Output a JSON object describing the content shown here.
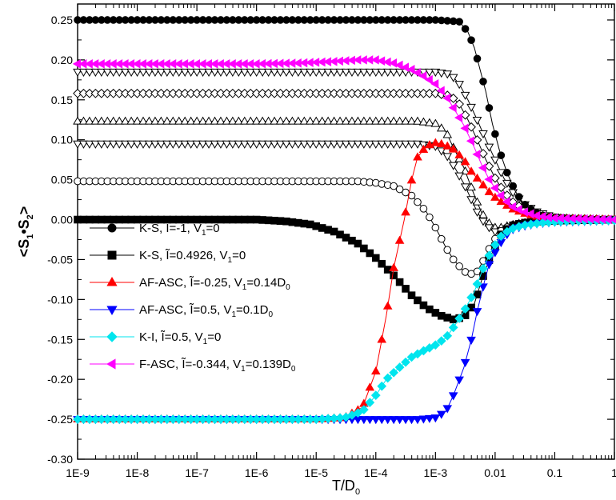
{
  "chart_data": {
    "type": "line",
    "x_scale": "log",
    "xlim": [
      1e-09,
      1
    ],
    "ylim": [
      -0.3,
      0.27
    ],
    "x_ticks": [
      "1E-9",
      "1E-8",
      "1E-7",
      "1E-6",
      "1E-5",
      "1E-4",
      "1E-3",
      "0.01",
      "0.1",
      "1"
    ],
    "y_ticks": [
      "0.25",
      "0.20",
      "0.15",
      "0.10",
      "0.05",
      "0.00",
      "-0.05",
      "-0.10",
      "-0.15",
      "-0.20",
      "-0.25",
      "-0.30"
    ],
    "xlabel": {
      "main": "T/D",
      "sub": "0"
    },
    "ylabel": "<S1•S2>",
    "legend_position": "lower-left",
    "series": [
      {
        "name": "K-S, Ĩ=-1, V1=0",
        "legend": [
          {
            "t": "K-S, Ĩ=-1, V"
          },
          {
            "t": "1",
            "sub": true
          },
          {
            "t": "=0"
          }
        ],
        "color": "#000000",
        "marker": "circle",
        "fill": true,
        "in_legend": true,
        "points": [
          [
            1e-09,
            0.25
          ],
          [
            1e-05,
            0.25
          ],
          [
            0.001,
            0.25
          ],
          [
            0.0025,
            0.248
          ],
          [
            0.0035,
            0.235
          ],
          [
            0.0045,
            0.215
          ],
          [
            0.0055,
            0.19
          ],
          [
            0.007,
            0.16
          ],
          [
            0.009,
            0.12
          ],
          [
            0.012,
            0.085
          ],
          [
            0.016,
            0.058
          ],
          [
            0.022,
            0.035
          ],
          [
            0.03,
            0.02
          ],
          [
            0.045,
            0.01
          ],
          [
            0.07,
            0.004
          ],
          [
            0.12,
            0.001
          ],
          [
            0.3,
            0.0
          ],
          [
            1,
            0.0
          ]
        ]
      },
      {
        "name": "K-S, Ĩ=0.4926, V1=0",
        "legend": [
          {
            "t": "K-S, Ĩ=0.4926, V"
          },
          {
            "t": "1",
            "sub": true
          },
          {
            "t": "=0"
          }
        ],
        "color": "#000000",
        "marker": "square",
        "fill": true,
        "in_legend": true,
        "points": [
          [
            1e-09,
            0.0
          ],
          [
            1e-06,
            0.0
          ],
          [
            3e-06,
            -0.002
          ],
          [
            8e-06,
            -0.006
          ],
          [
            2e-05,
            -0.015
          ],
          [
            5e-05,
            -0.03
          ],
          [
            0.0001,
            -0.048
          ],
          [
            0.0002,
            -0.07
          ],
          [
            0.0004,
            -0.095
          ],
          [
            0.0007,
            -0.11
          ],
          [
            0.0012,
            -0.12
          ],
          [
            0.002,
            -0.125
          ],
          [
            0.003,
            -0.122
          ],
          [
            0.0045,
            -0.105
          ],
          [
            0.006,
            -0.075
          ],
          [
            0.0085,
            -0.045
          ],
          [
            0.012,
            -0.02
          ],
          [
            0.018,
            -0.008
          ],
          [
            0.03,
            -0.004
          ],
          [
            0.06,
            -0.002
          ],
          [
            0.15,
            -0.001
          ],
          [
            1,
            0.0
          ]
        ]
      },
      {
        "name": "AF-ASC, Ĩ=-0.25, V1=0.14D0",
        "legend": [
          {
            "t": "AF-ASC, Ĩ=-0.25, V"
          },
          {
            "t": "1",
            "sub": true
          },
          {
            "t": "=0.14D"
          },
          {
            "t": "0",
            "sub": true
          }
        ],
        "color": "#ff0000",
        "marker": "triangle-up",
        "fill": true,
        "in_legend": true,
        "points": [
          [
            1e-09,
            -0.25
          ],
          [
            1e-05,
            -0.25
          ],
          [
            3e-05,
            -0.248
          ],
          [
            6e-05,
            -0.235
          ],
          [
            0.0001,
            -0.19
          ],
          [
            0.00015,
            -0.12
          ],
          [
            0.0002,
            -0.06
          ],
          [
            0.0003,
            0.0
          ],
          [
            0.0004,
            0.05
          ],
          [
            0.0005,
            0.078
          ],
          [
            0.0007,
            0.092
          ],
          [
            0.001,
            0.096
          ],
          [
            0.0014,
            0.094
          ],
          [
            0.002,
            0.088
          ],
          [
            0.003,
            0.075
          ],
          [
            0.004,
            0.06
          ],
          [
            0.006,
            0.045
          ],
          [
            0.009,
            0.03
          ],
          [
            0.014,
            0.02
          ],
          [
            0.02,
            0.013
          ],
          [
            0.03,
            0.008
          ],
          [
            0.05,
            0.004
          ],
          [
            0.1,
            0.001
          ],
          [
            1,
            0.0
          ]
        ]
      },
      {
        "name": "AF-ASC, Ĩ=0.5, V1=0.1D0",
        "legend": [
          {
            "t": "AF-ASC, Ĩ=0.5, V"
          },
          {
            "t": "1",
            "sub": true
          },
          {
            "t": "=0.1D"
          },
          {
            "t": "0",
            "sub": true
          }
        ],
        "color": "#0000ff",
        "marker": "triangle-down",
        "fill": true,
        "in_legend": true,
        "points": [
          [
            1e-09,
            -0.25
          ],
          [
            0.0001,
            -0.25
          ],
          [
            0.0005,
            -0.25
          ],
          [
            0.001,
            -0.248
          ],
          [
            0.0015,
            -0.24
          ],
          [
            0.002,
            -0.22
          ],
          [
            0.003,
            -0.185
          ],
          [
            0.004,
            -0.15
          ],
          [
            0.005,
            -0.115
          ],
          [
            0.0065,
            -0.08
          ],
          [
            0.008,
            -0.055
          ],
          [
            0.011,
            -0.035
          ],
          [
            0.015,
            -0.02
          ],
          [
            0.02,
            -0.012
          ],
          [
            0.03,
            -0.008
          ],
          [
            0.05,
            -0.005
          ],
          [
            0.1,
            -0.003
          ],
          [
            1,
            -0.001
          ]
        ]
      },
      {
        "name": "K-I, Ĩ=0.5, V1=0",
        "legend": [
          {
            "t": "K-I, Ĩ=0.5, V"
          },
          {
            "t": "1",
            "sub": true
          },
          {
            "t": "=0"
          }
        ],
        "color": "#00e5ee",
        "marker": "diamond",
        "fill": true,
        "in_legend": true,
        "points": [
          [
            1e-09,
            -0.25
          ],
          [
            1e-05,
            -0.25
          ],
          [
            3e-05,
            -0.248
          ],
          [
            6e-05,
            -0.24
          ],
          [
            0.0001,
            -0.22
          ],
          [
            0.00015,
            -0.2
          ],
          [
            0.00025,
            -0.185
          ],
          [
            0.0004,
            -0.172
          ],
          [
            0.0006,
            -0.165
          ],
          [
            0.001,
            -0.157
          ],
          [
            0.0015,
            -0.148
          ],
          [
            0.002,
            -0.135
          ],
          [
            0.003,
            -0.115
          ],
          [
            0.0045,
            -0.09
          ],
          [
            0.006,
            -0.065
          ],
          [
            0.0085,
            -0.04
          ],
          [
            0.012,
            -0.022
          ],
          [
            0.018,
            -0.012
          ],
          [
            0.03,
            -0.007
          ],
          [
            0.06,
            -0.004
          ],
          [
            0.15,
            -0.002
          ],
          [
            1,
            -0.001
          ]
        ]
      },
      {
        "name": "F-ASC, Ĩ=-0.344, V1=0.139D0",
        "legend": [
          {
            "t": "F-ASC, Ĩ=-0.344, V"
          },
          {
            "t": "1",
            "sub": true
          },
          {
            "t": "=0.139D"
          },
          {
            "t": "0",
            "sub": true
          }
        ],
        "color": "#ff00ff",
        "marker": "triangle-left",
        "fill": true,
        "in_legend": true,
        "points": [
          [
            1e-09,
            0.195
          ],
          [
            1e-07,
            0.195
          ],
          [
            1e-06,
            0.195
          ],
          [
            5e-06,
            0.196
          ],
          [
            2e-05,
            0.198
          ],
          [
            5e-05,
            0.2
          ],
          [
            0.0001,
            0.2
          ],
          [
            0.0002,
            0.196
          ],
          [
            0.0004,
            0.188
          ],
          [
            0.0007,
            0.178
          ],
          [
            0.001,
            0.17
          ],
          [
            0.0015,
            0.155
          ],
          [
            0.002,
            0.14
          ],
          [
            0.003,
            0.118
          ],
          [
            0.0045,
            0.09
          ],
          [
            0.006,
            0.068
          ],
          [
            0.008,
            0.05
          ],
          [
            0.011,
            0.035
          ],
          [
            0.015,
            0.024
          ],
          [
            0.02,
            0.016
          ],
          [
            0.03,
            0.01
          ],
          [
            0.05,
            0.005
          ],
          [
            0.1,
            0.002
          ],
          [
            1,
            0.0
          ]
        ]
      },
      {
        "name": "open triangle-down",
        "color": "#000000",
        "marker": "triangle-down",
        "fill": false,
        "in_legend": false,
        "points": [
          [
            1e-09,
            0.185
          ],
          [
            1e-05,
            0.185
          ],
          [
            0.001,
            0.185
          ],
          [
            0.0018,
            0.182
          ],
          [
            0.0025,
            0.17
          ],
          [
            0.0035,
            0.15
          ],
          [
            0.005,
            0.125
          ],
          [
            0.007,
            0.1
          ],
          [
            0.01,
            0.075
          ],
          [
            0.014,
            0.052
          ],
          [
            0.02,
            0.034
          ],
          [
            0.03,
            0.02
          ],
          [
            0.05,
            0.01
          ],
          [
            0.09,
            0.004
          ],
          [
            0.2,
            0.001
          ],
          [
            1,
            0.0
          ]
        ]
      },
      {
        "name": "open diamond",
        "color": "#000000",
        "marker": "diamond",
        "fill": false,
        "in_legend": false,
        "points": [
          [
            1e-09,
            0.158
          ],
          [
            1e-05,
            0.158
          ],
          [
            0.001,
            0.158
          ],
          [
            0.0018,
            0.155
          ],
          [
            0.0025,
            0.145
          ],
          [
            0.0035,
            0.125
          ],
          [
            0.005,
            0.1
          ],
          [
            0.007,
            0.075
          ],
          [
            0.01,
            0.052
          ],
          [
            0.014,
            0.035
          ],
          [
            0.02,
            0.022
          ],
          [
            0.03,
            0.013
          ],
          [
            0.05,
            0.006
          ],
          [
            0.1,
            0.002
          ],
          [
            1,
            0.0
          ]
        ]
      },
      {
        "name": "open triangle-up",
        "color": "#000000",
        "marker": "triangle-up",
        "fill": false,
        "in_legend": false,
        "points": [
          [
            1e-09,
            0.123
          ],
          [
            1e-05,
            0.123
          ],
          [
            0.0005,
            0.123
          ],
          [
            0.001,
            0.12
          ],
          [
            0.0015,
            0.11
          ],
          [
            0.002,
            0.09
          ],
          [
            0.003,
            0.065
          ],
          [
            0.004,
            0.04
          ],
          [
            0.005,
            0.022
          ],
          [
            0.006,
            0.008
          ],
          [
            0.008,
            -0.005
          ],
          [
            0.01,
            -0.01
          ],
          [
            0.013,
            -0.01
          ],
          [
            0.018,
            -0.007
          ],
          [
            0.03,
            -0.004
          ],
          [
            0.06,
            -0.002
          ],
          [
            0.2,
            -0.001
          ],
          [
            1,
            0.0
          ]
        ]
      },
      {
        "name": "open triangle-down lower",
        "color": "#000000",
        "marker": "triangle-down",
        "fill": false,
        "in_legend": false,
        "points": [
          [
            1e-09,
            0.095
          ],
          [
            1e-05,
            0.095
          ],
          [
            0.0005,
            0.095
          ],
          [
            0.001,
            0.092
          ],
          [
            0.0015,
            0.082
          ],
          [
            0.002,
            0.068
          ],
          [
            0.003,
            0.045
          ],
          [
            0.004,
            0.025
          ],
          [
            0.005,
            0.01
          ],
          [
            0.006,
            0.0
          ],
          [
            0.008,
            -0.01
          ],
          [
            0.01,
            -0.015
          ],
          [
            0.013,
            -0.014
          ],
          [
            0.018,
            -0.01
          ],
          [
            0.03,
            -0.006
          ],
          [
            0.06,
            -0.003
          ],
          [
            0.2,
            -0.001
          ],
          [
            1,
            0.0
          ]
        ]
      },
      {
        "name": "open circle",
        "color": "#000000",
        "marker": "circle",
        "fill": false,
        "in_legend": false,
        "points": [
          [
            1e-09,
            0.048
          ],
          [
            1e-05,
            0.048
          ],
          [
            5e-05,
            0.048
          ],
          [
            0.0001,
            0.046
          ],
          [
            0.0002,
            0.042
          ],
          [
            0.0004,
            0.03
          ],
          [
            0.0007,
            0.01
          ],
          [
            0.001,
            -0.01
          ],
          [
            0.0015,
            -0.035
          ],
          [
            0.002,
            -0.05
          ],
          [
            0.003,
            -0.065
          ],
          [
            0.004,
            -0.068
          ],
          [
            0.005,
            -0.065
          ],
          [
            0.0065,
            -0.05
          ],
          [
            0.0085,
            -0.032
          ],
          [
            0.012,
            -0.015
          ],
          [
            0.018,
            -0.007
          ],
          [
            0.03,
            -0.004
          ],
          [
            0.06,
            -0.002
          ],
          [
            0.15,
            -0.001
          ],
          [
            1,
            0.0
          ]
        ]
      }
    ]
  }
}
